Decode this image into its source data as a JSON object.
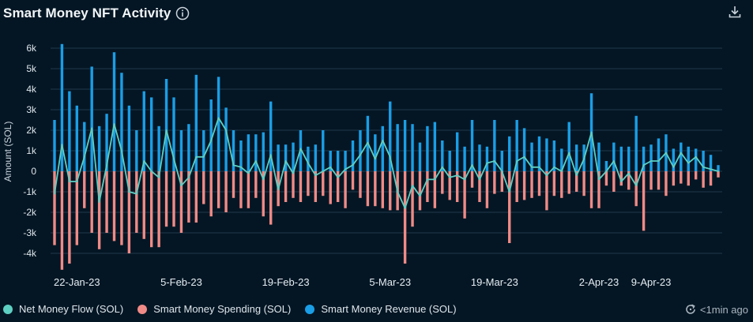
{
  "header": {
    "title": "Smart Money NFT Activity"
  },
  "icons": {
    "info": "info-icon",
    "download": "download-icon",
    "refresh": "refresh-icon"
  },
  "status": {
    "updated": "<1min ago"
  },
  "colors": {
    "background": "#041624",
    "net": "#5ecfc3",
    "spending": "#f08a86",
    "revenue": "#1a9ee6",
    "grid": "#1f3a4d",
    "text": "#c9d3db"
  },
  "legend": [
    {
      "label": "Net Money Flow (SOL)",
      "color": "#5ecfc3"
    },
    {
      "label": "Smart Money Spending (SOL)",
      "color": "#f08a86"
    },
    {
      "label": "Smart Money Revenue (SOL)",
      "color": "#1a9ee6"
    }
  ],
  "chart_data": {
    "type": "bar",
    "title": "Smart Money NFT Activity",
    "xlabel": "",
    "ylabel": "Amount (SOL)",
    "ylim": [
      -4500,
      6200
    ],
    "yticks": [
      {
        "value": 6000,
        "label": "6k"
      },
      {
        "value": 5000,
        "label": "5k"
      },
      {
        "value": 4000,
        "label": "4k"
      },
      {
        "value": 3000,
        "label": "3k"
      },
      {
        "value": 2000,
        "label": "2k"
      },
      {
        "value": 1000,
        "label": "1k"
      },
      {
        "value": 0,
        "label": "0"
      },
      {
        "value": -1000,
        "label": "-1k"
      },
      {
        "value": -2000,
        "label": "-2k"
      },
      {
        "value": -3000,
        "label": "-3k"
      },
      {
        "value": -4000,
        "label": "-4k"
      }
    ],
    "xticks": [
      {
        "index": 3,
        "label": "22-Jan-23"
      },
      {
        "index": 17,
        "label": "5-Feb-23"
      },
      {
        "index": 31,
        "label": "19-Feb-23"
      },
      {
        "index": 45,
        "label": "5-Mar-23"
      },
      {
        "index": 59,
        "label": "19-Mar-23"
      },
      {
        "index": 73,
        "label": "2-Apr-23"
      },
      {
        "index": 80,
        "label": "9-Apr-23"
      }
    ],
    "series": [
      {
        "name": "Smart Money Revenue (SOL)",
        "values": [
          2500,
          6200,
          3900,
          3200,
          2400,
          5100,
          2200,
          2800,
          5800,
          4800,
          3200,
          2000,
          3900,
          3600,
          2200,
          4500,
          3600,
          2000,
          2300,
          4700,
          2000,
          3500,
          4600,
          3100,
          2000,
          1500,
          1800,
          1800,
          1900,
          3400,
          1300,
          1300,
          1400,
          2000,
          1200,
          1300,
          2000,
          1000,
          1000,
          1000,
          1500,
          2000,
          2700,
          1800,
          2200,
          3400,
          2300,
          2500,
          2300,
          1400,
          2200,
          2400,
          1500,
          1000,
          1900,
          1200,
          2500,
          1300,
          1200,
          2500,
          1000,
          1700,
          2500,
          2100,
          1400,
          1700,
          1600,
          1500,
          1100,
          2400,
          1300,
          1300,
          3800,
          1400,
          500,
          1400,
          1200,
          1200,
          2700,
          1200,
          1300,
          1600,
          1800,
          1100,
          1400,
          1200,
          1100,
          1000,
          800,
          300
        ],
        "color": "#1a9ee6"
      },
      {
        "name": "Smart Money Spending (SOL)",
        "values": [
          -3600,
          -4800,
          -4500,
          -3600,
          -1800,
          -3000,
          -3800,
          -3000,
          -3400,
          -3600,
          -4000,
          -3000,
          -3300,
          -3700,
          -3700,
          -2700,
          -2700,
          -3000,
          -2500,
          -2500,
          -1600,
          -2200,
          -1800,
          -2000,
          -1300,
          -1800,
          -1800,
          -1300,
          -2200,
          -2600,
          -1700,
          -1500,
          -1300,
          -1500,
          -1200,
          -1500,
          -1200,
          -1600,
          -1500,
          -1800,
          -900,
          -1300,
          -1700,
          -1700,
          -1800,
          -1900,
          -1900,
          -4500,
          -2700,
          -1900,
          -1500,
          -1800,
          -1100,
          -1400,
          -1500,
          -2300,
          -800,
          -1500,
          -1800,
          -1100,
          -1000,
          -3500,
          -1500,
          -1400,
          -1300,
          -1200,
          -1900,
          -1200,
          -1300,
          -1100,
          -1000,
          -1200,
          -1800,
          -1800,
          -700,
          -1000,
          -700,
          -900,
          -1700,
          -2900,
          -900,
          -900,
          -1200,
          -700,
          -600,
          -700,
          -400,
          -800,
          -700,
          -300
        ],
        "color": "#f08a86"
      },
      {
        "name": "Net Money Flow (SOL)",
        "values": [
          -1100,
          1300,
          -500,
          -500,
          700,
          2100,
          -1500,
          300,
          2300,
          1000,
          -1000,
          -1100,
          500,
          0,
          -300,
          2000,
          600,
          -700,
          -300,
          700,
          700,
          1500,
          2600,
          2000,
          300,
          200,
          -100,
          500,
          -400,
          800,
          -900,
          500,
          -100,
          1100,
          400,
          -200,
          0,
          200,
          -300,
          100,
          300,
          800,
          1400,
          600,
          1500,
          700,
          -1000,
          -1800,
          -700,
          -1200,
          -400,
          -400,
          200,
          -300,
          -200,
          -400,
          300,
          -400,
          400,
          500,
          0,
          -1000,
          500,
          700,
          200,
          200,
          -200,
          200,
          0,
          900,
          -200,
          600,
          1900,
          -400,
          0,
          500,
          -500,
          -100,
          -700,
          300,
          500,
          500,
          900,
          200,
          900,
          400,
          700,
          200,
          100,
          0
        ],
        "color": "#5ecfc3"
      }
    ]
  }
}
